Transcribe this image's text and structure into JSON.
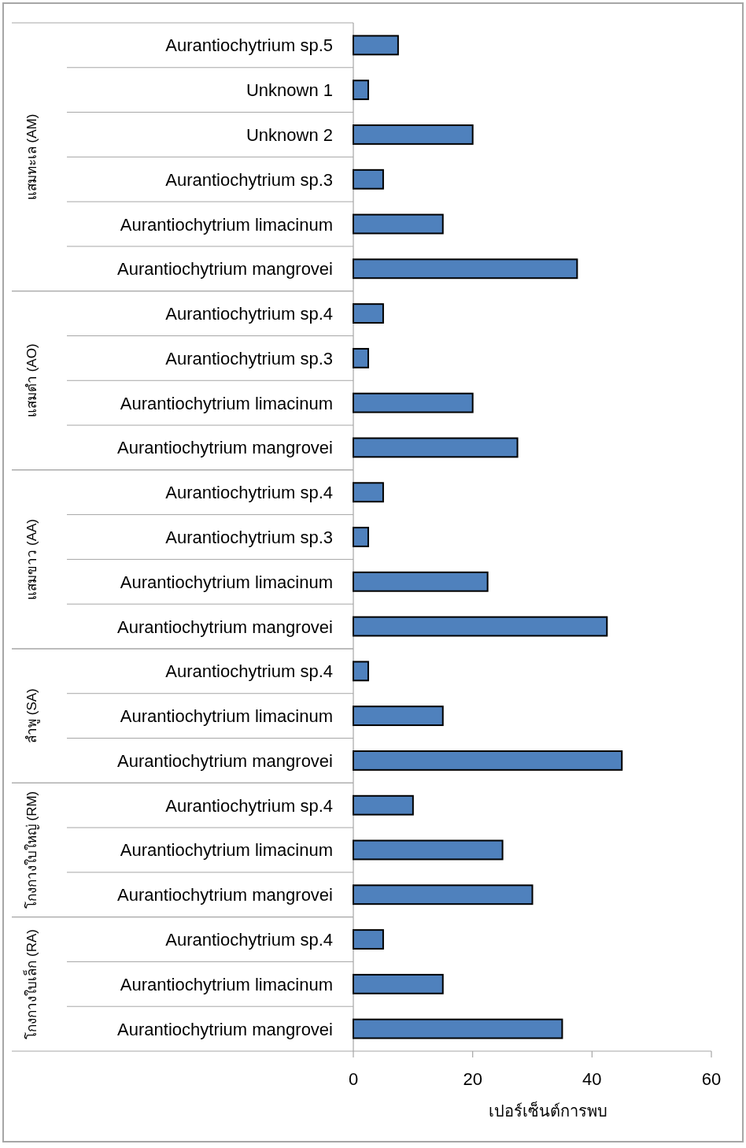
{
  "chart_data": [
    {
      "type": "bar",
      "orientation": "horizontal",
      "title": "แสมทะเล (AM)",
      "categories": [
        "Aurantiochytrium sp.5",
        "Unknown 1",
        "Unknown 2",
        "Aurantiochytrium sp.3",
        "Aurantiochytrium limacinum",
        "Aurantiochytrium mangrovei"
      ],
      "values": [
        7.5,
        2.5,
        20,
        5,
        15,
        37.5
      ],
      "color": "#4f81bd",
      "xlim": [
        0,
        60
      ],
      "tick_labels": "y"
    },
    {
      "type": "bar",
      "orientation": "horizontal",
      "title": "แสมดำ (AO)",
      "categories": [
        "Aurantiochytrium sp.4",
        "Aurantiochytrium sp.3",
        "Aurantiochytrium limacinum",
        "Aurantiochytrium mangrovei"
      ],
      "values": [
        5,
        2.5,
        20,
        27.5
      ],
      "color": "#4f81bd",
      "xlim": [
        0,
        60
      ],
      "tick_labels": "y"
    },
    {
      "type": "bar",
      "orientation": "horizontal",
      "title": "แสมขาว (AA)",
      "categories": [
        "Aurantiochytrium sp.4",
        "Aurantiochytrium sp.3",
        "Aurantiochytrium limacinum",
        "Aurantiochytrium mangrovei"
      ],
      "values": [
        5,
        2.5,
        22.5,
        42.5
      ],
      "color": "#4f81bd",
      "xlim": [
        0,
        60
      ],
      "tick_labels": "y"
    },
    {
      "type": "bar",
      "orientation": "horizontal",
      "title": "ลำพู (SA)",
      "categories": [
        "Aurantiochytrium sp.4",
        "Aurantiochytrium limacinum",
        "Aurantiochytrium mangrovei"
      ],
      "values": [
        2.5,
        15,
        45
      ],
      "color": "#4f81bd",
      "xlim": [
        0,
        60
      ],
      "tick_labels": "y"
    },
    {
      "type": "bar",
      "orientation": "horizontal",
      "title": "โกงกางใบใหญ่ (RM)",
      "categories": [
        "Aurantiochytrium sp.4",
        "Aurantiochytrium limacinum",
        "Aurantiochytrium mangrovei"
      ],
      "values": [
        10,
        25,
        30
      ],
      "color": "#4f81bd",
      "xlim": [
        0,
        60
      ],
      "tick_labels": "y"
    },
    {
      "type": "bar",
      "orientation": "horizontal",
      "title": "โกงกางใบเล็ก (RA)",
      "xlabel": "เปอร์เซ็นต์การพบ",
      "categories": [
        "Aurantiochytrium sp.4",
        "Aurantiochytrium limacinum",
        "Aurantiochytrium mangrovei"
      ],
      "values": [
        5,
        15,
        35
      ],
      "color": "#4f81bd",
      "xlim": [
        0,
        60
      ],
      "xticks": [
        0,
        20,
        40,
        60
      ]
    }
  ]
}
